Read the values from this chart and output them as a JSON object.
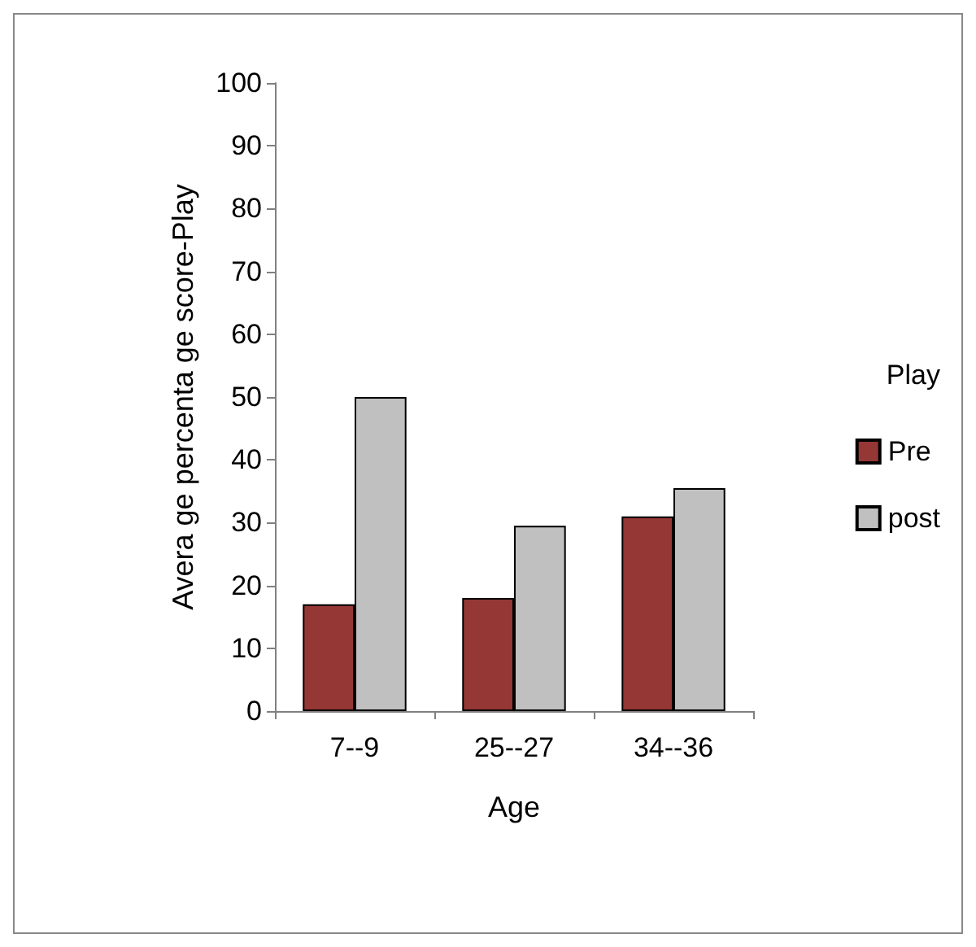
{
  "chart_data": {
    "type": "bar",
    "categories": [
      "7--9",
      "25--27",
      "34--36"
    ],
    "series": [
      {
        "name": "Pre",
        "color": "#953735",
        "values": [
          17,
          18,
          31
        ]
      },
      {
        "name": "post",
        "color": "#c0c0c0",
        "values": [
          50,
          29.5,
          35.5
        ]
      }
    ],
    "xlabel": "Age",
    "ylabel": "Avera ge percenta ge score-Play",
    "legend_title": "Play",
    "legend": "right",
    "ylim": [
      0,
      100
    ],
    "yticks": [
      0,
      10,
      20,
      30,
      40,
      50,
      60,
      70,
      80,
      90,
      100
    ],
    "grid": false
  }
}
